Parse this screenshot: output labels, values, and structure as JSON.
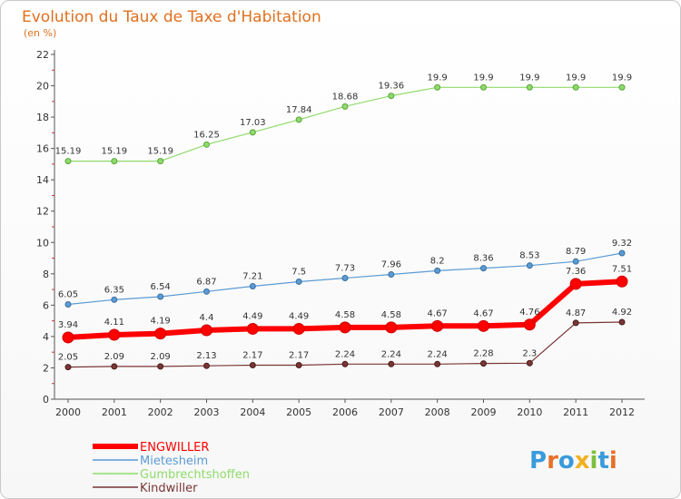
{
  "chart_data": {
    "type": "line",
    "title": "Evolution du Taux de Taxe d'Habitation",
    "subtitle": "(en %)",
    "x": [
      "2000",
      "2001",
      "2002",
      "2003",
      "2004",
      "2005",
      "2006",
      "2007",
      "2008",
      "2009",
      "2010",
      "2011",
      "2012"
    ],
    "ylim": [
      0,
      22
    ],
    "yticks": [
      0,
      2,
      4,
      6,
      8,
      10,
      12,
      14,
      16,
      18,
      20,
      22
    ],
    "grid": false,
    "legend_position": "bottom-left",
    "series": [
      {
        "name": "ENGWILLER",
        "color": "#ff0000",
        "values": [
          3.94,
          4.11,
          4.19,
          4.4,
          4.49,
          4.49,
          4.58,
          4.58,
          4.67,
          4.67,
          4.76,
          7.36,
          7.51
        ],
        "labels": [
          "3.94",
          "4.11",
          "4.19",
          "4.4",
          "4.49",
          "4.49",
          "4.58",
          "4.58",
          "4.67",
          "4.67",
          "4.76",
          "7.36",
          "7.51"
        ]
      },
      {
        "name": "Mietesheim",
        "color": "#5b9bd5",
        "values": [
          6.05,
          6.35,
          6.54,
          6.87,
          7.21,
          7.5,
          7.73,
          7.96,
          8.2,
          8.36,
          8.53,
          8.79,
          9.32
        ],
        "labels": [
          "6.05",
          "6.35",
          "6.54",
          "6.87",
          "7.21",
          "7.5",
          "7.73",
          "7.96",
          "8.2",
          "8.36",
          "8.53",
          "8.79",
          "9.32"
        ]
      },
      {
        "name": "Gumbrechtshoffen",
        "color": "#8fdb6a",
        "values": [
          15.19,
          15.19,
          15.19,
          16.25,
          17.03,
          17.84,
          18.68,
          19.36,
          19.9,
          19.9,
          19.9,
          19.9,
          19.9
        ],
        "labels": [
          "15.19",
          "15.19",
          "15.19",
          "16.25",
          "17.03",
          "17.84",
          "18.68",
          "19.36",
          "19.9",
          "19.9",
          "19.9",
          "19.9",
          "19.9"
        ]
      },
      {
        "name": "Kindwiller",
        "color": "#7a3535",
        "values": [
          2.05,
          2.09,
          2.09,
          2.13,
          2.17,
          2.17,
          2.24,
          2.24,
          2.24,
          2.28,
          2.3,
          4.87,
          4.92
        ],
        "labels": [
          "2.05",
          "2.09",
          "2.09",
          "2.13",
          "2.17",
          "2.17",
          "2.24",
          "2.24",
          "2.24",
          "2.28",
          "2.3",
          "4.87",
          "4.92"
        ]
      }
    ]
  },
  "logo": {
    "text": "Proxiti",
    "letters": [
      "P",
      "r",
      "o",
      "x",
      "i",
      "t",
      "i"
    ],
    "colors": [
      "#3a9bdc",
      "#e8702a",
      "#3a9bdc",
      "#f2b01e",
      "#7cbf3c",
      "#3a9bdc",
      "#e8702a"
    ]
  }
}
